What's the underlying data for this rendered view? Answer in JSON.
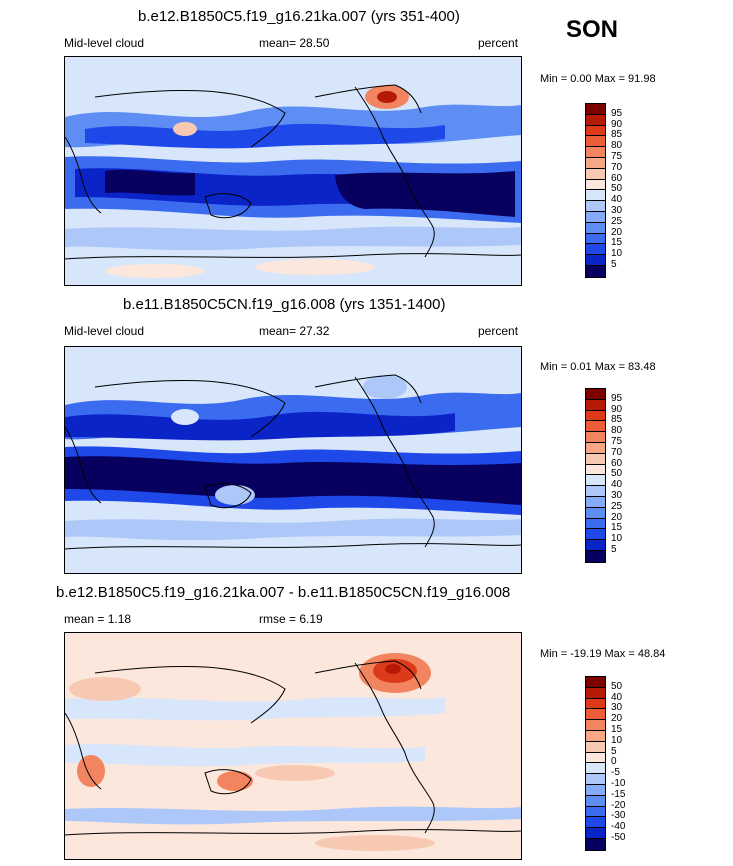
{
  "season": "SON",
  "colors": {
    "c01": "#08005e",
    "c02": "#0b24c8",
    "c03": "#1f48e8",
    "c04": "#3b6cf0",
    "c05": "#5e8ef4",
    "c06": "#85aaf6",
    "c07": "#adc8f8",
    "c08": "#d8e6fb",
    "c09": "#fbe7dc",
    "c10": "#f8c9b2",
    "c11": "#f5a786",
    "c12": "#f2845f",
    "c13": "#ec5e38",
    "c14": "#dc3a18",
    "c15": "#b41a06",
    "c16": "#7a0300"
  },
  "panels": [
    {
      "title": "b.e12.B1850C5.f19_g16.21ka.007 (yrs 351-400)",
      "left_label": "Mid-level cloud",
      "center_label": "mean=  28.50",
      "right_label": "percent",
      "minmax": "Min =   0.00 Max =  91.98",
      "colorbar_ticks": [
        "95",
        "90",
        "85",
        "80",
        "75",
        "70",
        "60",
        "50",
        "40",
        "30",
        "25",
        "20",
        "15",
        "10",
        "5"
      ]
    },
    {
      "title": "b.e11.B1850C5CN.f19_g16.008 (yrs 1351-1400)",
      "left_label": "Mid-level cloud",
      "center_label": "mean=  27.32",
      "right_label": "percent",
      "minmax": "Min =   0.01 Max =  83.48",
      "colorbar_ticks": [
        "95",
        "90",
        "85",
        "80",
        "75",
        "70",
        "60",
        "50",
        "40",
        "30",
        "25",
        "20",
        "15",
        "10",
        "5"
      ]
    },
    {
      "title": "b.e12.B1850C5.f19_g16.21ka.007 - b.e11.B1850C5CN.f19_g16.008",
      "left_label": "mean =   1.18",
      "center_label": "rmse =   6.19",
      "right_label": "",
      "minmax": "Min = -19.19 Max =  48.84",
      "colorbar_ticks": [
        "50",
        "40",
        "30",
        "20",
        "15",
        "10",
        "5",
        "0",
        "-5",
        "-10",
        "-15",
        "-20",
        "-30",
        "-40",
        "-50"
      ]
    }
  ],
  "chart_data": [
    {
      "type": "heatmap",
      "title": "b.e12.B1850C5.f19_g16.21ka.007 (yrs 351-400)",
      "variable": "Mid-level cloud",
      "units": "percent",
      "season": "SON",
      "mean": 28.5,
      "min": 0.0,
      "max": 91.98,
      "colorbar_levels": [
        5,
        10,
        15,
        20,
        25,
        30,
        40,
        50,
        60,
        70,
        75,
        80,
        85,
        90,
        95
      ],
      "grid": false
    },
    {
      "type": "heatmap",
      "title": "b.e11.B1850C5CN.f19_g16.008 (yrs 1351-1400)",
      "variable": "Mid-level cloud",
      "units": "percent",
      "season": "SON",
      "mean": 27.32,
      "min": 0.01,
      "max": 83.48,
      "colorbar_levels": [
        5,
        10,
        15,
        20,
        25,
        30,
        40,
        50,
        60,
        70,
        75,
        80,
        85,
        90,
        95
      ],
      "grid": false
    },
    {
      "type": "heatmap",
      "title": "b.e12.B1850C5.f19_g16.21ka.007 - b.e11.B1850C5CN.f19_g16.008",
      "season": "SON",
      "mean": 1.18,
      "rmse": 6.19,
      "min": -19.19,
      "max": 48.84,
      "colorbar_levels": [
        -50,
        -40,
        -30,
        -20,
        -15,
        -10,
        -5,
        0,
        5,
        10,
        15,
        20,
        30,
        40,
        50
      ],
      "grid": false
    }
  ]
}
